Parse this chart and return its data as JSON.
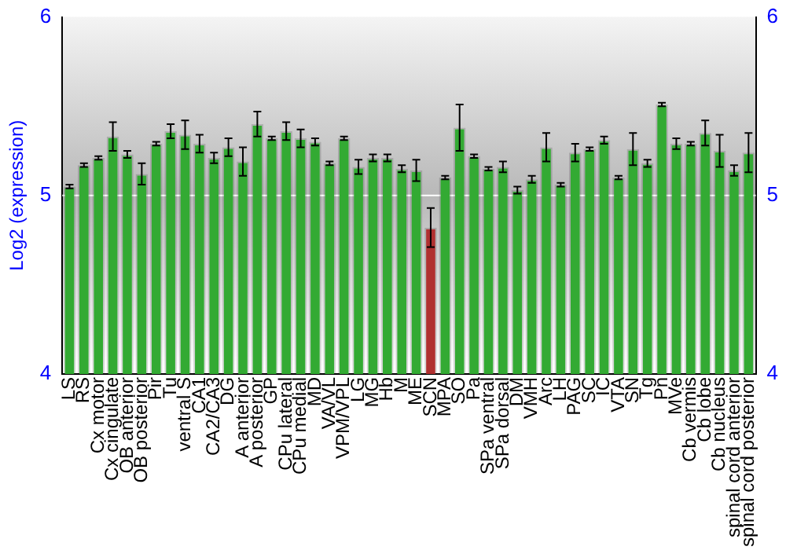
{
  "chart_data": {
    "type": "bar",
    "ylabel": "Log2 (expression)",
    "categories": [
      "LS",
      "RS",
      "Cx motor",
      "Cx cingulate",
      "OB anterior",
      "OB posterior",
      "Pir",
      "Tu",
      "ventral S",
      "CA1",
      "CA2/CA3",
      "DG",
      "A anterior",
      "A posterior",
      "GP",
      "CPu lateral",
      "CPu medial",
      "MD",
      "VA/VL",
      "VPM/VPL",
      "LG",
      "MG",
      "Hb",
      "M",
      "ME",
      "SCN",
      "MPA",
      "SO",
      "Pa",
      "SPa ventral",
      "SPa dorsal",
      "DM",
      "VMH",
      "Arc",
      "LH",
      "PAG",
      "SC",
      "IC",
      "VTA",
      "SN",
      "Tg",
      "Pn",
      "MVe",
      "Cb vermis",
      "Cb lobe",
      "Cb nucleus",
      "spinal cord anterior",
      "spinal cord posterior"
    ],
    "values": [
      5.05,
      5.17,
      5.21,
      5.33,
      5.23,
      5.12,
      5.29,
      5.36,
      5.34,
      5.29,
      5.21,
      5.27,
      5.19,
      5.4,
      5.32,
      5.36,
      5.32,
      5.3,
      5.18,
      5.32,
      5.16,
      5.21,
      5.21,
      5.15,
      5.14,
      4.82,
      5.1,
      5.38,
      5.22,
      5.15,
      5.16,
      5.03,
      5.09,
      5.27,
      5.06,
      5.24,
      5.26,
      5.31,
      5.1,
      5.26,
      5.18,
      5.51,
      5.29,
      5.29,
      5.35,
      5.25,
      5.14,
      5.24
    ],
    "errors": [
      0.01,
      0.01,
      0.01,
      0.08,
      0.02,
      0.06,
      0.01,
      0.04,
      0.08,
      0.05,
      0.03,
      0.05,
      0.08,
      0.07,
      0.01,
      0.05,
      0.05,
      0.02,
      0.01,
      0.01,
      0.04,
      0.02,
      0.02,
      0.02,
      0.06,
      0.11,
      0.01,
      0.13,
      0.01,
      0.01,
      0.03,
      0.02,
      0.02,
      0.08,
      0.01,
      0.05,
      0.01,
      0.02,
      0.01,
      0.09,
      0.02,
      0.01,
      0.03,
      0.01,
      0.07,
      0.09,
      0.03,
      0.11
    ],
    "colors": [
      "#33aa33",
      "#33aa33",
      "#33aa33",
      "#33aa33",
      "#33aa33",
      "#33aa33",
      "#33aa33",
      "#33aa33",
      "#33aa33",
      "#33aa33",
      "#33aa33",
      "#33aa33",
      "#33aa33",
      "#33aa33",
      "#33aa33",
      "#33aa33",
      "#33aa33",
      "#33aa33",
      "#33aa33",
      "#33aa33",
      "#33aa33",
      "#33aa33",
      "#33aa33",
      "#33aa33",
      "#33aa33",
      "#b03030",
      "#33aa33",
      "#33aa33",
      "#33aa33",
      "#33aa33",
      "#33aa33",
      "#33aa33",
      "#33aa33",
      "#33aa33",
      "#33aa33",
      "#33aa33",
      "#33aa33",
      "#33aa33",
      "#33aa33",
      "#33aa33",
      "#33aa33",
      "#33aa33",
      "#33aa33",
      "#33aa33",
      "#33aa33",
      "#33aa33",
      "#33aa33",
      "#33aa33"
    ],
    "ylim": [
      4,
      6
    ],
    "yticks": [
      4,
      5,
      6
    ],
    "y2lim": [
      4,
      6
    ],
    "y2ticks": [
      4,
      5,
      6
    ],
    "ref_lines": [
      {
        "axis": "y",
        "value": 5,
        "color": "#ffffff"
      }
    ],
    "legend": false
  }
}
